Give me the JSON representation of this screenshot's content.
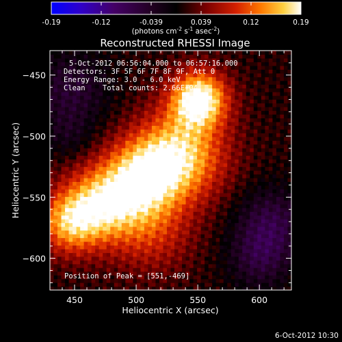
{
  "chart_data": {
    "type": "heatmap",
    "title": "Reconstructed RHESSI Image",
    "xlabel": "Heliocentric X (arcsec)",
    "ylabel": "Heliocentric Y (arcsec)",
    "xlim": [
      430,
      626
    ],
    "ylim": [
      -626,
      -430
    ],
    "x_ticks": [
      450,
      500,
      550,
      600
    ],
    "y_ticks": [
      -450,
      -500,
      -550,
      -600
    ],
    "colorbar": {
      "range": [
        -0.19,
        0.19
      ],
      "ticks": [
        "-0.19",
        "-0.12",
        "-0.039",
        "0.039",
        "0.12",
        "0.19"
      ],
      "unit_label": "(photons cm",
      "unit_exp1": "-2",
      "unit_mid": " s",
      "unit_exp2": "-1",
      "unit_tail": " asec",
      "unit_exp3": "-2",
      "unit_close": ")"
    },
    "annotations": [
      "5-Oct-2012 06:56:04.000 to 06:57:16.000",
      "Detectors: 3F 5F 6F 7F 8F 9F, Att 0",
      "Energy Range: 3.0 - 6.0 keV",
      "Clean    Total counts: 2.66E+04"
    ],
    "peak_label": "Position of Peak = [551,-469]",
    "peak_position": [
      551,
      -469
    ],
    "sources": [
      {
        "x": 551,
        "y": -469,
        "intensity": 0.19,
        "sigma": 16
      },
      {
        "x": 536,
        "y": -515,
        "intensity": 0.15,
        "sigma": 26
      },
      {
        "x": 505,
        "y": -533,
        "intensity": 0.13,
        "sigma": 22
      },
      {
        "x": 472,
        "y": -555,
        "intensity": 0.14,
        "sigma": 22
      },
      {
        "x": 445,
        "y": -571,
        "intensity": 0.12,
        "sigma": 18
      },
      {
        "x": 512,
        "y": -578,
        "intensity": 0.07,
        "sigma": 24
      }
    ],
    "negative_regions": [
      {
        "x": 447,
        "y": -462,
        "intensity": -0.06,
        "sigma": 22
      },
      {
        "x": 610,
        "y": -570,
        "intensity": -0.07,
        "sigma": 20
      },
      {
        "x": 600,
        "y": -600,
        "intensity": -0.06,
        "sigma": 18
      },
      {
        "x": 445,
        "y": -500,
        "intensity": -0.03,
        "sigma": 14
      }
    ]
  },
  "footer_timestamp": "6-Oct-2012 10:30"
}
